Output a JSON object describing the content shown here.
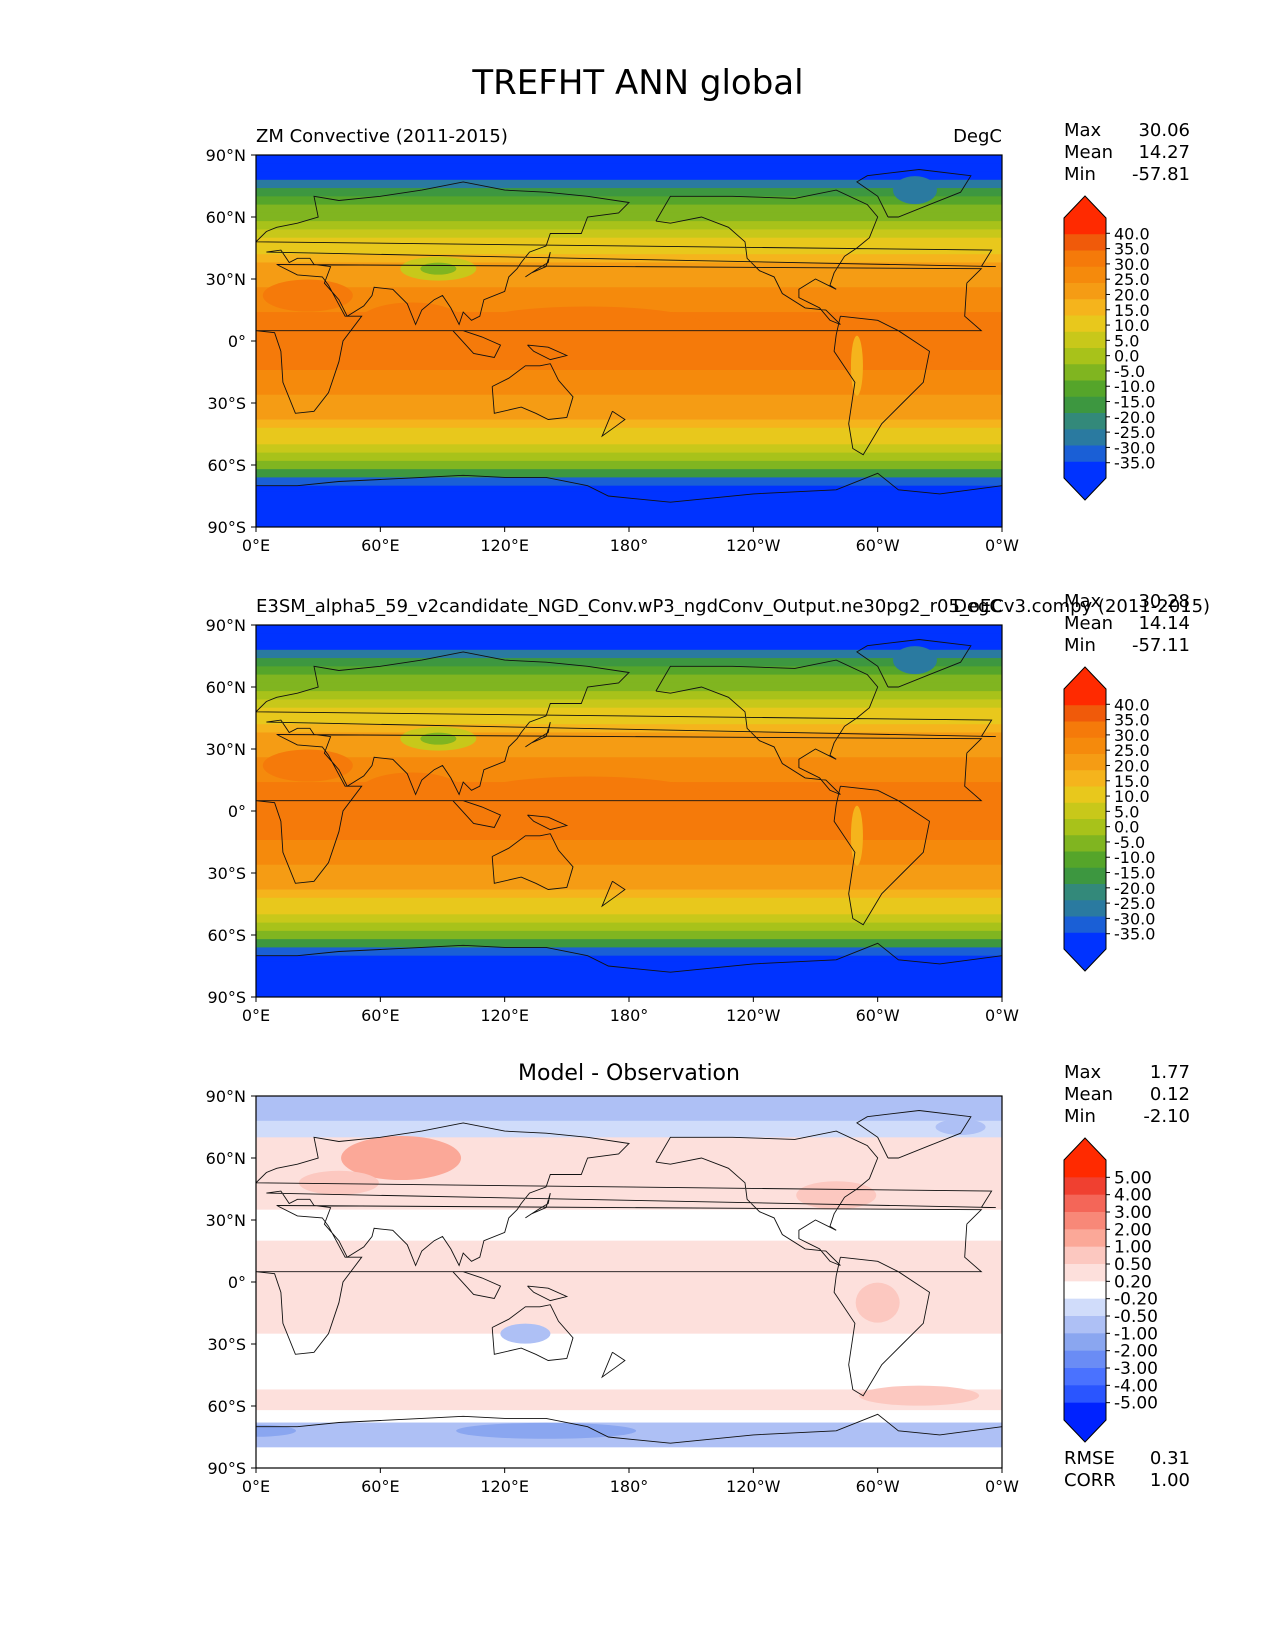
{
  "figure_title": "TREFHT ANN global",
  "lat_ticks": [
    "90°N",
    "60°N",
    "30°N",
    "0°",
    "30°S",
    "60°S",
    "90°S"
  ],
  "lon_ticks": [
    "0°E",
    "60°E",
    "120°E",
    "180°",
    "120°W",
    "60°W",
    "0°W"
  ],
  "colors": {
    "abs_bands": [
      "#0033ff",
      "#1a5fd6",
      "#2a7aa0",
      "#33897a",
      "#3d9740",
      "#55a52a",
      "#80b520",
      "#a8c21a",
      "#c8c81a",
      "#e8c81c",
      "#f5b41c",
      "#f59c14",
      "#f58a0c",
      "#f57a0a",
      "#f05a0a",
      "#ff2a00"
    ],
    "diff_bands": [
      "#0022ff",
      "#2a55ff",
      "#4a72ff",
      "#6a8cf5",
      "#8aa6f0",
      "#aec0f5",
      "#d0dcfa",
      "#ffffff",
      "#fde0dc",
      "#fcc8c0",
      "#fba898",
      "#f88878",
      "#f46658",
      "#f04030",
      "#ff2a00"
    ]
  },
  "panels": {
    "test": {
      "title_left": "ZM Convective (2011-2015)",
      "title_right": "DegC",
      "stats": {
        "max_label": "Max",
        "max": "30.06",
        "mean_label": "Mean",
        "mean": "14.27",
        "min_label": "Min",
        "min": "-57.81"
      }
    },
    "ref": {
      "title_left": "E3SM_alpha5_59_v2candidate_NGD_Conv.wP3_ngdConv_Output.ne30pg2_r05_oECv3.compy (2011-2015)",
      "title_right": "DegC",
      "stats": {
        "max_label": "Max",
        "max": "30.28",
        "mean_label": "Mean",
        "mean": "14.14",
        "min_label": "Min",
        "min": "-57.11"
      }
    },
    "diff": {
      "title_center": "Model - Observation",
      "stats": {
        "max_label": "Max",
        "max": "1.77",
        "mean_label": "Mean",
        "mean": "0.12",
        "min_label": "Min",
        "min": "-2.10"
      },
      "metrics": {
        "rmse_label": "RMSE",
        "rmse": "0.31",
        "corr_label": "CORR",
        "corr": "1.00"
      }
    }
  },
  "colorbars": {
    "abs": [
      "40.0",
      "35.0",
      "30.0",
      "25.0",
      "20.0",
      "15.0",
      "10.0",
      "5.0",
      "0.0",
      "-5.0",
      "-10.0",
      "-15.0",
      "-20.0",
      "-25.0",
      "-30.0",
      "-35.0"
    ],
    "diff": [
      "5.00",
      "4.00",
      "3.00",
      "2.00",
      "1.00",
      "0.50",
      "0.20",
      "-0.20",
      "-0.50",
      "-1.00",
      "-2.00",
      "-3.00",
      "-4.00",
      "-5.00"
    ]
  },
  "chart_data": [
    {
      "type": "heatmap",
      "title": "ZM Convective (2011-2015)",
      "units": "DegC",
      "field": "TREFHT annual mean, zonal approximation",
      "latitudes": [
        80,
        65,
        50,
        35,
        20,
        5,
        -10,
        -25,
        -40,
        -55,
        -65,
        -80
      ],
      "values": [
        -20,
        -10,
        0,
        12,
        22,
        26,
        25,
        21,
        12,
        2,
        -12,
        -45
      ],
      "xlim": [
        0,
        360
      ],
      "ylim": [
        -90,
        90
      ],
      "stats": {
        "max": 30.06,
        "mean": 14.27,
        "min": -57.81
      }
    },
    {
      "type": "heatmap",
      "title": "E3SM_alpha5_59_v2candidate_NGD_Conv.wP3_ngdConv_Output.ne30pg2_r05_oECv3.compy (2011-2015)",
      "units": "DegC",
      "latitudes": [
        80,
        65,
        50,
        35,
        20,
        5,
        -10,
        -25,
        -40,
        -55,
        -65,
        -80
      ],
      "values": [
        -20,
        -10,
        0,
        12,
        22,
        26,
        25,
        21,
        12,
        2,
        -12,
        -45
      ],
      "xlim": [
        0,
        360
      ],
      "ylim": [
        -90,
        90
      ],
      "stats": {
        "max": 30.28,
        "mean": 14.14,
        "min": -57.11
      }
    },
    {
      "type": "heatmap",
      "title": "Model - Observation",
      "units": "DegC",
      "latitudes": [
        85,
        60,
        35,
        10,
        -15,
        -40,
        -60,
        -75
      ],
      "values": [
        -0.6,
        0.6,
        0.3,
        0.3,
        0.2,
        0.0,
        0.4,
        -0.8
      ],
      "xlim": [
        0,
        360
      ],
      "ylim": [
        -90,
        90
      ],
      "stats": {
        "max": 1.77,
        "mean": 0.12,
        "min": -2.1,
        "rmse": 0.31,
        "corr": 1.0
      }
    }
  ]
}
